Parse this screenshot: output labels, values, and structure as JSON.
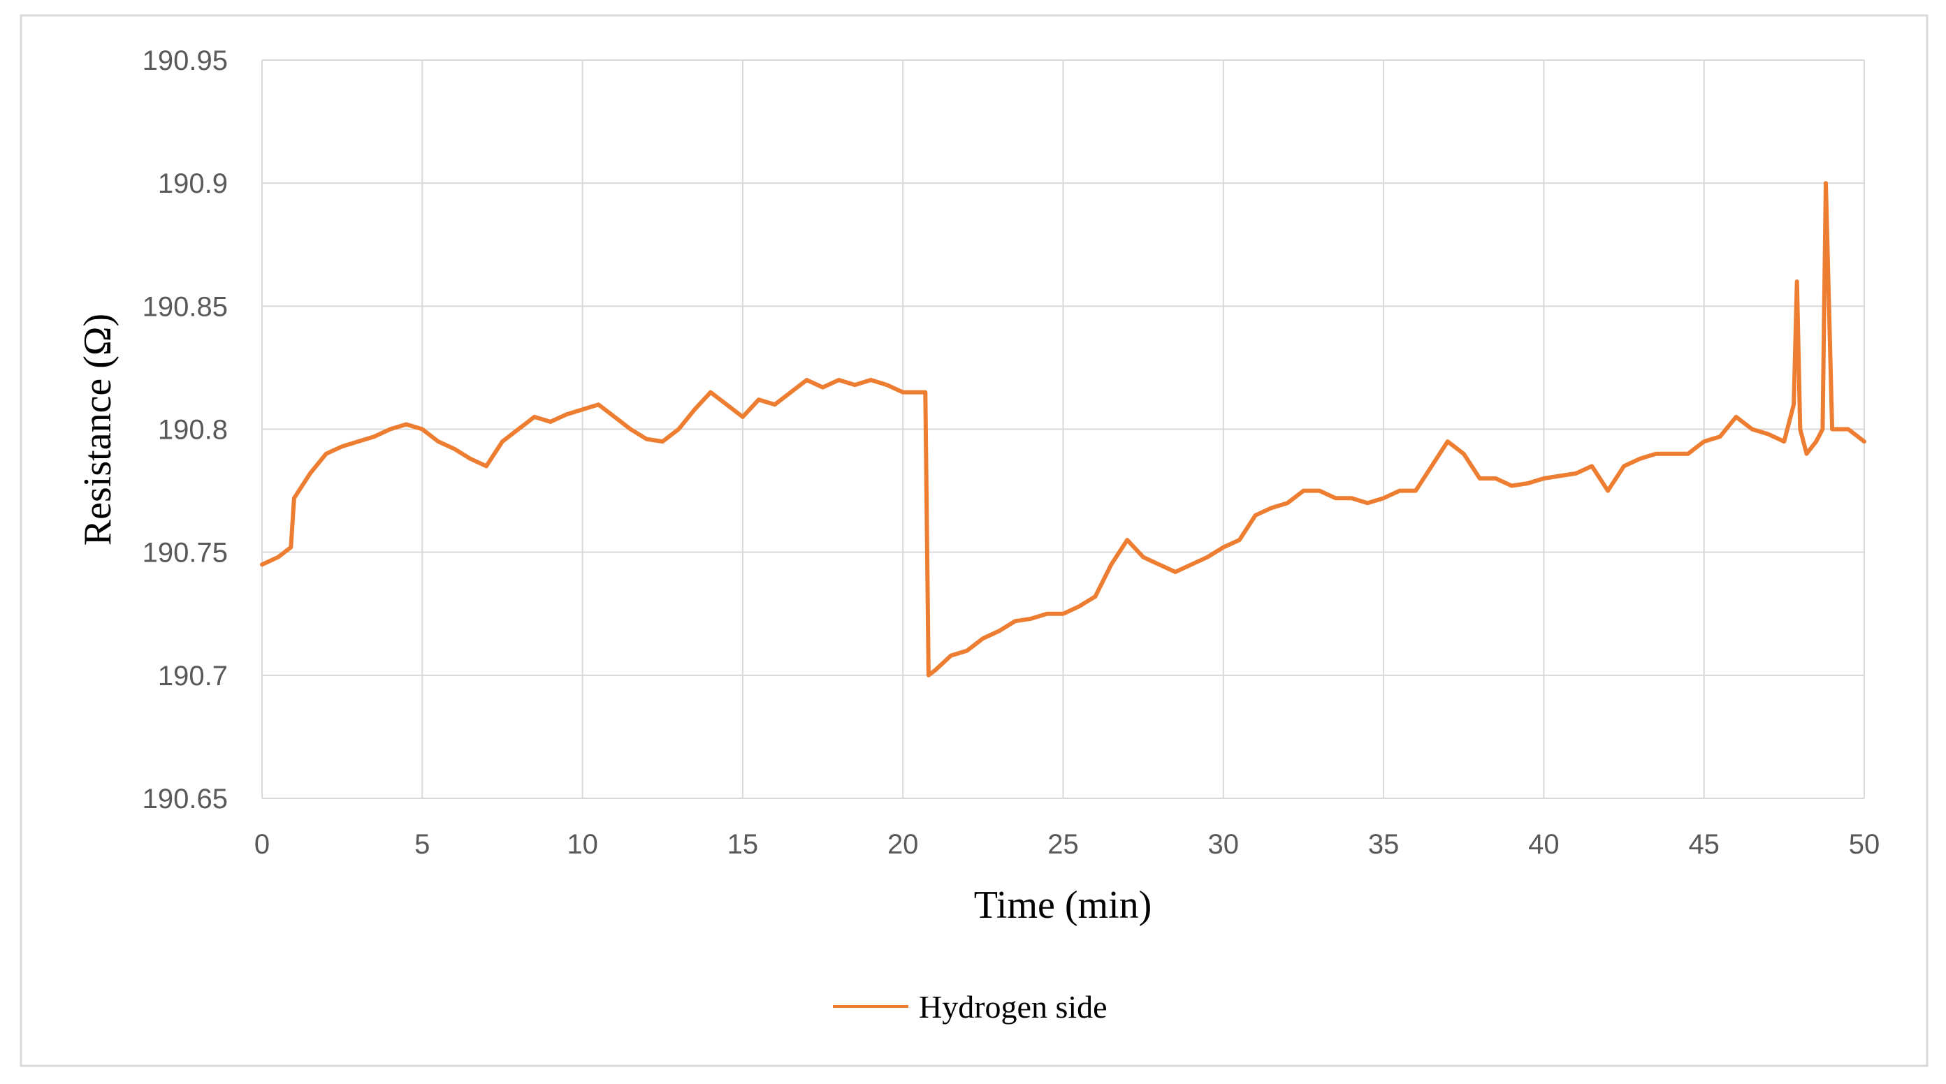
{
  "chart_data": {
    "type": "line",
    "title": "",
    "xlabel": "Time (min)",
    "ylabel": "Resistance (Ω)",
    "xlim": [
      0,
      50
    ],
    "ylim": [
      190.65,
      190.95
    ],
    "x_ticks": [
      0,
      5,
      10,
      15,
      20,
      25,
      30,
      35,
      40,
      45,
      50
    ],
    "x_tick_labels": [
      "0",
      "5",
      "10",
      "15",
      "20",
      "25",
      "30",
      "35",
      "40",
      "45",
      "50"
    ],
    "y_ticks": [
      190.65,
      190.7,
      190.75,
      190.8,
      190.85,
      190.9,
      190.95
    ],
    "y_tick_labels": [
      "190.65",
      "190.7",
      "190.75",
      "190.8",
      "190.85",
      "190.9",
      "190.95"
    ],
    "grid": true,
    "legend_position": "bottom-center",
    "series": [
      {
        "name": "Hydrogen side",
        "color": "#ED7D31",
        "x": [
          0,
          0.5,
          0.9,
          1.0,
          1.5,
          2.0,
          2.5,
          3.0,
          3.5,
          4.0,
          4.5,
          5.0,
          5.5,
          6.0,
          6.5,
          7.0,
          7.5,
          8.0,
          8.5,
          9.0,
          9.5,
          10.0,
          10.5,
          11.0,
          11.5,
          12.0,
          12.5,
          13.0,
          13.5,
          14.0,
          14.5,
          15.0,
          15.5,
          16.0,
          16.5,
          17.0,
          17.5,
          18.0,
          18.5,
          19.0,
          19.5,
          20.0,
          20.5,
          20.7,
          20.8,
          21.0,
          21.5,
          22.0,
          22.5,
          23.0,
          23.5,
          24.0,
          24.5,
          25.0,
          25.5,
          26.0,
          26.5,
          27.0,
          27.5,
          28.0,
          28.5,
          29.0,
          29.5,
          30.0,
          30.5,
          31.0,
          31.5,
          32.0,
          32.5,
          33.0,
          33.5,
          34.0,
          34.5,
          35.0,
          35.5,
          36.0,
          36.5,
          37.0,
          37.5,
          38.0,
          38.5,
          39.0,
          39.5,
          40.0,
          40.5,
          41.0,
          41.5,
          42.0,
          42.5,
          43.0,
          43.5,
          44.0,
          44.5,
          45.0,
          45.5,
          46.0,
          46.5,
          47.0,
          47.5,
          47.8,
          47.9,
          48.0,
          48.2,
          48.5,
          48.7,
          48.8,
          49.0,
          49.5,
          50.0
        ],
        "y": [
          190.745,
          190.748,
          190.752,
          190.772,
          190.782,
          190.79,
          190.793,
          190.795,
          190.797,
          190.8,
          190.802,
          190.8,
          190.795,
          190.792,
          190.788,
          190.785,
          190.795,
          190.8,
          190.805,
          190.803,
          190.806,
          190.808,
          190.81,
          190.805,
          190.8,
          190.796,
          190.795,
          190.8,
          190.808,
          190.815,
          190.81,
          190.805,
          190.812,
          190.81,
          190.815,
          190.82,
          190.817,
          190.82,
          190.818,
          190.82,
          190.818,
          190.815,
          190.815,
          190.815,
          190.7,
          190.702,
          190.708,
          190.71,
          190.715,
          190.718,
          190.722,
          190.723,
          190.725,
          190.725,
          190.728,
          190.732,
          190.745,
          190.755,
          190.748,
          190.745,
          190.742,
          190.745,
          190.748,
          190.752,
          190.755,
          190.765,
          190.768,
          190.77,
          190.775,
          190.775,
          190.772,
          190.772,
          190.77,
          190.772,
          190.775,
          190.775,
          190.785,
          190.795,
          190.79,
          190.78,
          190.78,
          190.777,
          190.778,
          190.78,
          190.781,
          190.782,
          190.785,
          190.775,
          190.785,
          190.788,
          190.79,
          190.79,
          190.79,
          190.795,
          190.797,
          190.805,
          190.8,
          190.798,
          190.795,
          190.81,
          190.86,
          190.8,
          190.79,
          190.795,
          190.8,
          190.9,
          190.8,
          190.8,
          190.795
        ]
      }
    ]
  },
  "legend": {
    "label": "Hydrogen side"
  }
}
